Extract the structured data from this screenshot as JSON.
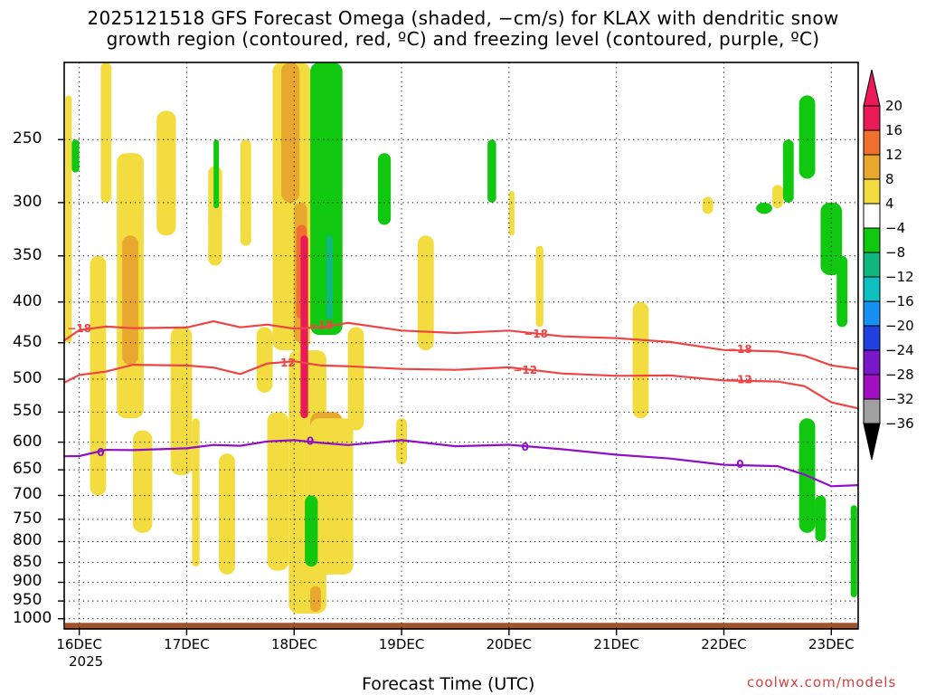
{
  "title": {
    "line1": "2025121518 GFS Forecast Omega (shaded, −cm/s) for KLAX with dendritic snow",
    "line2": "growth region (contoured, red, ºC) and freezing level (contoured, purple, ºC)"
  },
  "xlabel": "Forecast Time (UTC)",
  "credit": "coolwx.com/models",
  "chart_data": {
    "type": "heatmap",
    "title": "2025121518 GFS Forecast Omega (shaded, −cm/s) for KLAX with dendritic snow growth region (contoured, red, ºC) and freezing level (contoured, purple, ºC)",
    "xlabel": "Forecast Time (UTC)",
    "ylabel": "",
    "x_ticks": [
      "16DEC",
      "17DEC",
      "18DEC",
      "19DEC",
      "20DEC",
      "21DEC",
      "22DEC",
      "23DEC"
    ],
    "x_tick_days": [
      16,
      17,
      18,
      19,
      20,
      21,
      22,
      23
    ],
    "x_year": "2025",
    "xlim": [
      15.86,
      23.25
    ],
    "y_ticks": [
      250,
      300,
      350,
      400,
      450,
      500,
      550,
      600,
      650,
      700,
      750,
      800,
      850,
      900,
      950,
      1000
    ],
    "ylim": [
      200,
      1030
    ],
    "y_axis_reversed": true,
    "grid": true,
    "colorbar": {
      "labels": [
        "20",
        "16",
        "12",
        "8",
        "4",
        "−4",
        "−8",
        "−12",
        "−16",
        "−20",
        "−24",
        "−28",
        "−32",
        "−36"
      ],
      "bounds": [
        20,
        16,
        12,
        8,
        4,
        -4,
        -8,
        -12,
        -16,
        -20,
        -24,
        -28,
        -32,
        -36
      ],
      "colors": [
        "#ea1a57",
        "#f07030",
        "#e8a830",
        "#f2dc40",
        "#ffffff",
        "#10c810",
        "#10b880",
        "#10c0c0",
        "#1890f0",
        "#2040e0",
        "#7818c8",
        "#a010c0",
        "#a0a0a0"
      ],
      "top_arrow_color": "#ea1a57",
      "bottom_arrow_color": "#000000"
    },
    "series": [
      {
        "name": "dendritic snow growth region",
        "label": "−18",
        "color": "#ee4444",
        "x": [
          15.86,
          16.0,
          16.25,
          16.5,
          17.0,
          17.25,
          17.5,
          17.75,
          18.0,
          18.25,
          18.5,
          19.0,
          19.5,
          20.0,
          20.5,
          21.0,
          21.5,
          22.0,
          22.5,
          22.75,
          23.0,
          23.25
        ],
        "y": [
          447,
          432,
          432,
          430,
          430,
          425,
          428,
          428,
          433,
          428,
          427,
          434,
          436,
          437,
          440,
          444,
          451,
          457,
          463,
          468,
          478,
          488
        ],
        "label_x": [
          16.0,
          18.25,
          20.25,
          22.15
        ]
      },
      {
        "name": "dendritic snow growth region",
        "label": "−12",
        "color": "#ee4444",
        "x": [
          15.86,
          16.0,
          16.25,
          16.5,
          17.0,
          17.25,
          17.5,
          17.75,
          18.0,
          18.25,
          18.5,
          19.0,
          19.5,
          20.0,
          20.5,
          21.0,
          21.5,
          22.0,
          22.5,
          22.75,
          23.0,
          23.25
        ],
        "y": [
          505,
          492,
          492,
          478,
          480,
          486,
          490,
          479,
          476,
          478,
          484,
          485,
          485,
          486,
          490,
          495,
          497,
          499,
          505,
          511,
          532,
          547
        ],
        "label_x": [
          17.9,
          20.15,
          22.15
        ]
      },
      {
        "name": "freezing level",
        "label": "0",
        "color": "#9010c8",
        "x": [
          15.86,
          16.0,
          16.25,
          16.5,
          17.0,
          17.25,
          17.5,
          17.75,
          18.0,
          18.25,
          18.5,
          19.0,
          19.5,
          20.0,
          20.5,
          21.0,
          21.5,
          22.0,
          22.5,
          22.75,
          23.0,
          23.25
        ],
        "y": [
          625,
          622,
          617,
          612,
          610,
          608,
          603,
          600,
          598,
          598,
          608,
          596,
          605,
          608,
          610,
          622,
          632,
          637,
          645,
          660,
          678,
          683
        ],
        "label_x": [
          16.2,
          18.15,
          20.15,
          22.15
        ]
      }
    ],
    "omega_regions": [
      {
        "value": 6,
        "x0": 15.87,
        "x1": 15.93,
        "p0": 220,
        "p1": 450
      },
      {
        "value": 6,
        "x0": 16.1,
        "x1": 16.25,
        "p0": 350,
        "p1": 700
      },
      {
        "value": 6,
        "x0": 16.2,
        "x1": 16.3,
        "p0": 200,
        "p1": 300
      },
      {
        "value": 6,
        "x0": 16.35,
        "x1": 16.6,
        "p0": 260,
        "p1": 560
      },
      {
        "value": 10,
        "x0": 16.4,
        "x1": 16.55,
        "p0": 330,
        "p1": 480
      },
      {
        "value": 6,
        "x0": 16.5,
        "x1": 16.68,
        "p0": 580,
        "p1": 780
      },
      {
        "value": 6,
        "x0": 16.72,
        "x1": 16.9,
        "p0": 230,
        "p1": 330
      },
      {
        "value": 6,
        "x0": 16.85,
        "x1": 17.05,
        "p0": 430,
        "p1": 660
      },
      {
        "value": 6,
        "x0": 17.05,
        "x1": 17.12,
        "p0": 560,
        "p1": 860
      },
      {
        "value": 6,
        "x0": 17.2,
        "x1": 17.33,
        "p0": 270,
        "p1": 360
      },
      {
        "value": 6,
        "x0": 17.3,
        "x1": 17.45,
        "p0": 620,
        "p1": 880
      },
      {
        "value": 6,
        "x0": 17.5,
        "x1": 17.6,
        "p0": 250,
        "p1": 340
      },
      {
        "value": 6,
        "x0": 17.65,
        "x1": 17.8,
        "p0": 430,
        "p1": 520
      },
      {
        "value": 6,
        "x0": 17.75,
        "x1": 17.95,
        "p0": 550,
        "p1": 870
      },
      {
        "value": 6,
        "x0": 17.8,
        "x1": 18.15,
        "p0": 200,
        "p1": 460
      },
      {
        "value": 10,
        "x0": 17.88,
        "x1": 18.05,
        "p0": 200,
        "p1": 300
      },
      {
        "value": 6,
        "x0": 17.95,
        "x1": 18.3,
        "p0": 460,
        "p1": 985
      },
      {
        "value": 10,
        "x0": 18.0,
        "x1": 18.12,
        "p0": 300,
        "p1": 450
      },
      {
        "value": 14,
        "x0": 18.02,
        "x1": 18.12,
        "p0": 320,
        "p1": 420
      },
      {
        "value": 20,
        "x0": 18.06,
        "x1": 18.13,
        "p0": 330,
        "p1": 560
      },
      {
        "value": 10,
        "x0": 18.15,
        "x1": 18.45,
        "p0": 550,
        "p1": 820
      },
      {
        "value": 6,
        "x0": 18.15,
        "x1": 18.55,
        "p0": 560,
        "p1": 880
      },
      {
        "value": 10,
        "x0": 18.15,
        "x1": 18.25,
        "p0": 910,
        "p1": 980
      },
      {
        "value": 6,
        "x0": 18.5,
        "x1": 18.65,
        "p0": 430,
        "p1": 580
      },
      {
        "value": 6,
        "x0": 18.95,
        "x1": 19.05,
        "p0": 560,
        "p1": 640
      },
      {
        "value": 6,
        "x0": 19.15,
        "x1": 19.3,
        "p0": 330,
        "p1": 460
      },
      {
        "value": 6,
        "x0": 20.0,
        "x1": 20.05,
        "p0": 290,
        "p1": 330
      },
      {
        "value": 6,
        "x0": 20.25,
        "x1": 20.32,
        "p0": 340,
        "p1": 430
      },
      {
        "value": 6,
        "x0": 21.15,
        "x1": 21.3,
        "p0": 400,
        "p1": 560
      },
      {
        "value": 6,
        "x0": 21.8,
        "x1": 21.9,
        "p0": 295,
        "p1": 310
      },
      {
        "value": 6,
        "x0": 22.45,
        "x1": 22.55,
        "p0": 285,
        "p1": 305
      },
      {
        "value": -6,
        "x0": 15.93,
        "x1": 16.0,
        "p0": 250,
        "p1": 275
      },
      {
        "value": -6,
        "x0": 17.25,
        "x1": 17.3,
        "p0": 250,
        "p1": 305
      },
      {
        "value": -6,
        "x0": 18.15,
        "x1": 18.45,
        "p0": 200,
        "p1": 440
      },
      {
        "value": -10,
        "x0": 18.3,
        "x1": 18.36,
        "p0": 330,
        "p1": 420
      },
      {
        "value": -6,
        "x0": 18.78,
        "x1": 18.9,
        "p0": 260,
        "p1": 320
      },
      {
        "value": -6,
        "x0": 18.1,
        "x1": 18.22,
        "p0": 700,
        "p1": 860
      },
      {
        "value": -6,
        "x0": 19.8,
        "x1": 19.88,
        "p0": 250,
        "p1": 300
      },
      {
        "value": -6,
        "x0": 22.3,
        "x1": 22.45,
        "p0": 300,
        "p1": 310
      },
      {
        "value": -6,
        "x0": 22.55,
        "x1": 22.65,
        "p0": 250,
        "p1": 300
      },
      {
        "value": -6,
        "x0": 22.7,
        "x1": 22.85,
        "p0": 220,
        "p1": 280
      },
      {
        "value": -6,
        "x0": 22.9,
        "x1": 23.1,
        "p0": 300,
        "p1": 370
      },
      {
        "value": -6,
        "x0": 23.05,
        "x1": 23.15,
        "p0": 350,
        "p1": 430
      },
      {
        "value": -6,
        "x0": 22.7,
        "x1": 22.85,
        "p0": 560,
        "p1": 780
      },
      {
        "value": -6,
        "x0": 22.85,
        "x1": 22.95,
        "p0": 700,
        "p1": 800
      },
      {
        "value": -6,
        "x0": 23.18,
        "x1": 23.24,
        "p0": 720,
        "p1": 940
      }
    ],
    "ground_color": "#a0522d"
  }
}
